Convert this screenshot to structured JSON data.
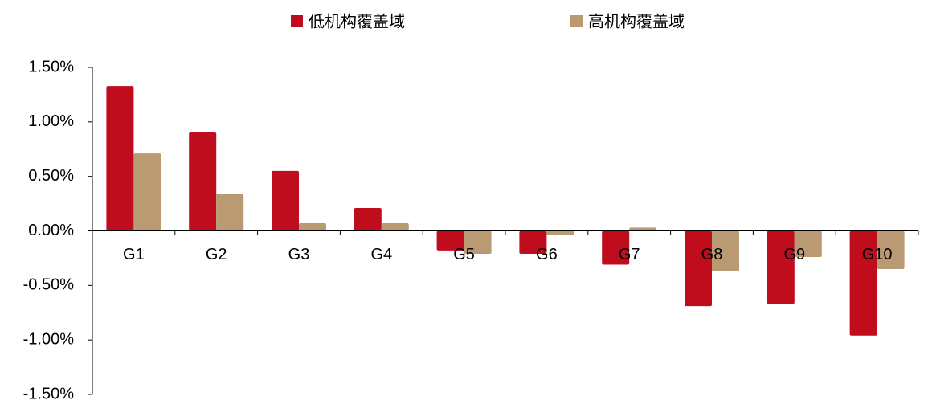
{
  "chart_data": {
    "type": "bar",
    "legend": "top",
    "categories": [
      "G1",
      "G2",
      "G3",
      "G4",
      "G5",
      "G6",
      "G7",
      "G8",
      "G9",
      "G10"
    ],
    "series": [
      {
        "name": "低机构覆盖域",
        "color": "#c00d1e",
        "values": [
          1.33,
          0.91,
          0.55,
          0.21,
          -0.18,
          -0.21,
          -0.31,
          -0.69,
          -0.67,
          -0.96
        ]
      },
      {
        "name": "高机构覆盖域",
        "color": "#b99a72",
        "values": [
          0.71,
          0.34,
          0.07,
          0.07,
          -0.21,
          -0.04,
          0.03,
          -0.37,
          -0.24,
          -0.35
        ]
      }
    ],
    "ylim": [
      -1.5,
      1.5
    ],
    "yticks": [
      {
        "value": 1.5,
        "label": "1.50%"
      },
      {
        "value": 1.0,
        "label": "1.00%"
      },
      {
        "value": 0.5,
        "label": "0.50%"
      },
      {
        "value": 0,
        "label": "0.00%"
      },
      {
        "value": -0.5,
        "label": "-0.50%"
      },
      {
        "value": -1.0,
        "label": "-1.00%"
      },
      {
        "value": -1.5,
        "label": "-1.50%"
      }
    ]
  }
}
